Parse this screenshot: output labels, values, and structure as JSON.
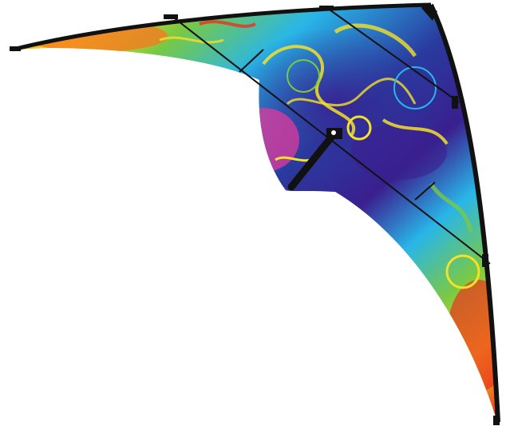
{
  "image": {
    "subject": "stunt-kite",
    "background_color": "#ffffff",
    "colors": {
      "frame": "#111111",
      "red": "#e8321e",
      "orange": "#f47a20",
      "yellow": "#f6e11c",
      "green": "#7ac943",
      "cyan": "#29b6e8",
      "blue": "#2a3a9e",
      "indigo": "#3a1f8f",
      "magenta": "#e23a9c",
      "accent_yellow": "#f3e12a"
    }
  }
}
